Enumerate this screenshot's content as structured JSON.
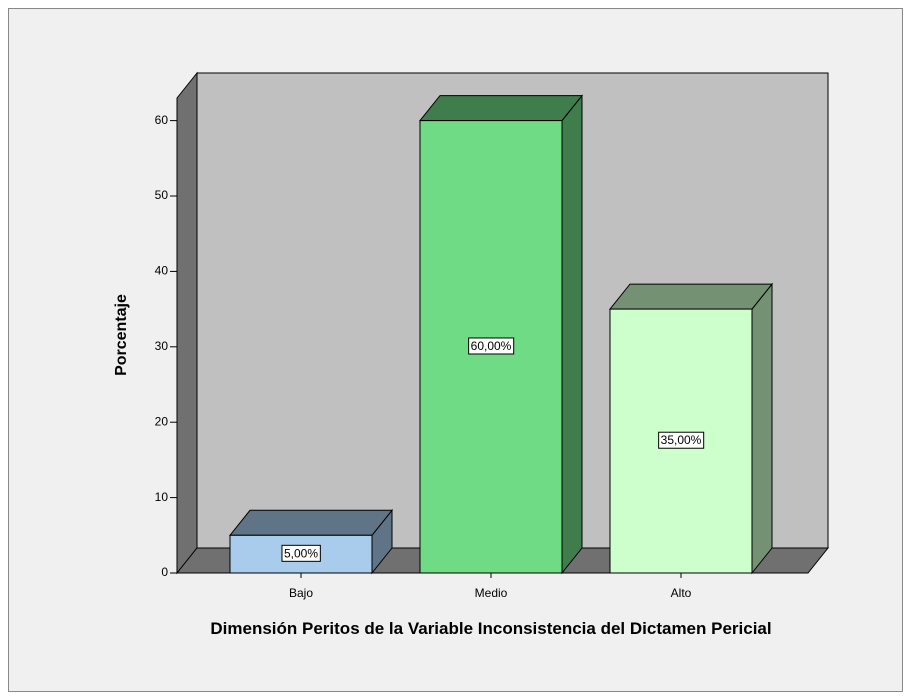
{
  "chart_data": {
    "type": "bar3d",
    "x_label": "Dimensión Peritos de la Variable Inconsistencia del Dictamen Pericial",
    "y_label": "Porcentaje",
    "categories": [
      "Bajo",
      "Medio",
      "Alto"
    ],
    "values": [
      5,
      60,
      35
    ],
    "value_labels": [
      "5,00%",
      "60,00%",
      "35,00%"
    ],
    "colors": [
      "#a9cbec",
      "#6fdc85",
      "#ccffcc"
    ],
    "ylim": [
      0,
      63
    ],
    "yticks": [
      0,
      10,
      20,
      30,
      40,
      50,
      60
    ]
  }
}
